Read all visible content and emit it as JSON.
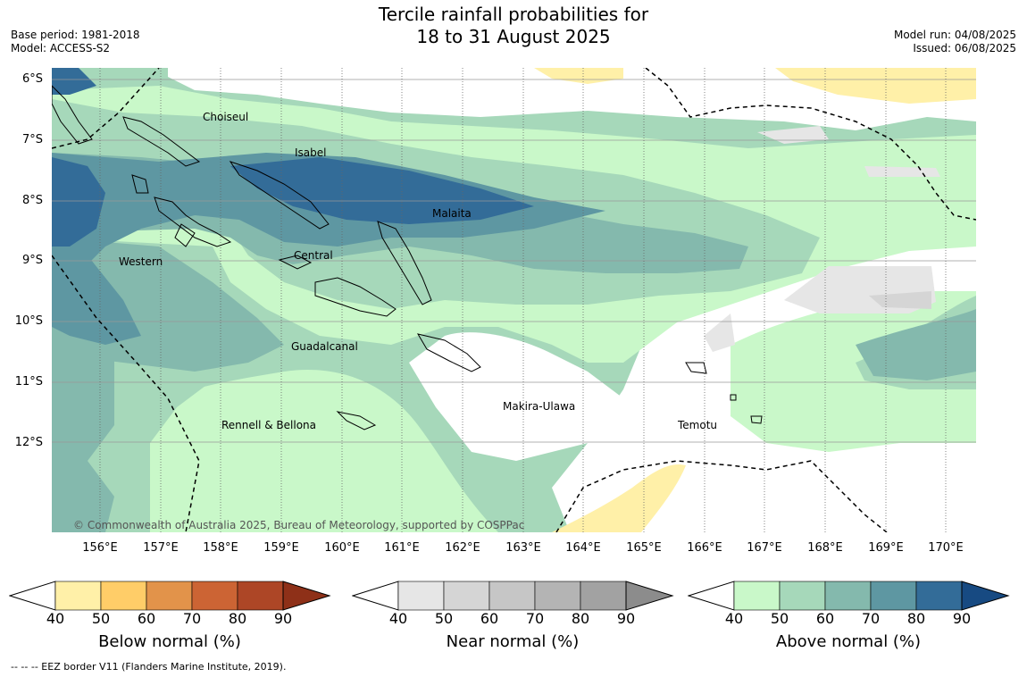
{
  "title_line1": "Tercile rainfall probabilities for",
  "title_line2": "18 to 31 August 2025",
  "meta_left": {
    "base_period": "Base period: 1981-2018",
    "model": "Model: ACCESS-S2"
  },
  "meta_right": {
    "model_run": "Model run: 04/08/2025",
    "issued": "Issued: 06/08/2025"
  },
  "lat_labels": [
    "6°S",
    "7°S",
    "8°S",
    "9°S",
    "10°S",
    "11°S",
    "12°S"
  ],
  "lon_labels": [
    "156°E",
    "157°E",
    "158°E",
    "159°E",
    "160°E",
    "161°E",
    "162°E",
    "163°E",
    "164°E",
    "165°E",
    "166°E",
    "167°E",
    "168°E",
    "169°E",
    "170°E"
  ],
  "provinces": [
    "Choiseul",
    "Isabel",
    "Malaita",
    "Western",
    "Central",
    "Guadalcanal",
    "Makira-Ulawa",
    "Rennell & Bellona",
    "Temotu"
  ],
  "copyright": "© Commonwealth of Australia 2025, Bureau of Meteorology, supported by COSPPac",
  "colorbars": [
    {
      "title": "Below normal (%)",
      "ticks": [
        "40",
        "50",
        "60",
        "70",
        "80",
        "90"
      ],
      "colors": [
        "#fff0a8",
        "#ffcd68",
        "#e2934a",
        "#cc6434",
        "#ad4626",
        "#8e3018"
      ]
    },
    {
      "title": "Near normal (%)",
      "ticks": [
        "40",
        "50",
        "60",
        "70",
        "80",
        "90"
      ],
      "colors": [
        "#e6e6e6",
        "#d5d5d5",
        "#c6c6c6",
        "#b4b4b4",
        "#a2a2a2",
        "#8c8c8c"
      ]
    },
    {
      "title": "Above normal (%)",
      "ticks": [
        "40",
        "50",
        "60",
        "70",
        "80",
        "90"
      ],
      "colors": [
        "#c9f8c9",
        "#a6d8ba",
        "#84b9ad",
        "#5e97a2",
        "#336c98",
        "#174a82"
      ]
    }
  ],
  "footer": "--  --  -- EEZ border V11 (Flanders Marine Institute, 2019)."
}
